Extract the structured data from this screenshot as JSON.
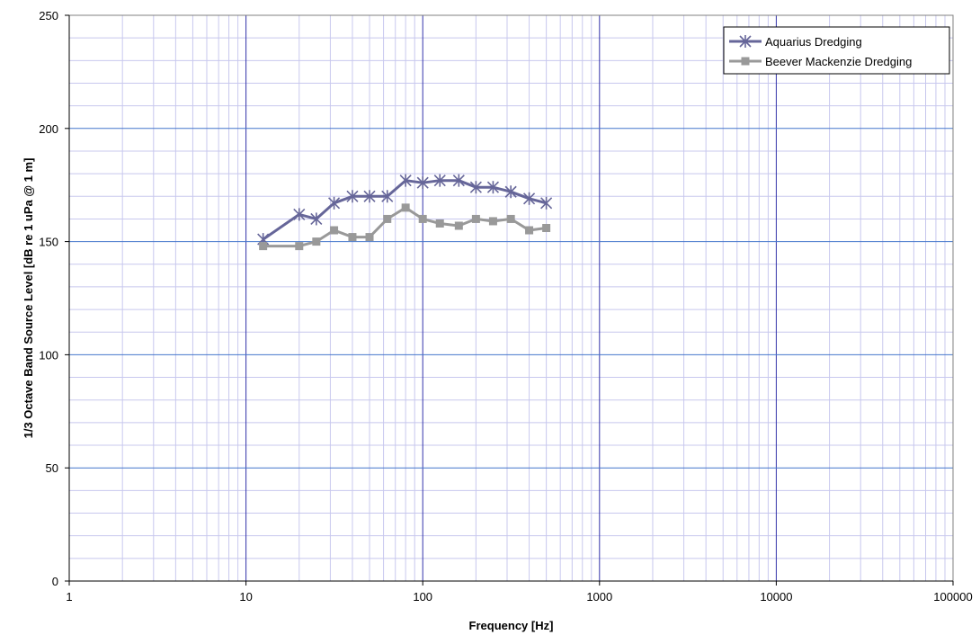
{
  "chart_data": {
    "type": "line",
    "title": "",
    "xlabel": "Frequency [Hz]",
    "ylabel": "1/3 Octave Band Source Level [dB re 1 uPa @ 1 m]",
    "xscale": "log",
    "xlim": [
      1,
      100000
    ],
    "ylim": [
      0,
      250
    ],
    "x_ticks": [
      "1",
      "10",
      "100",
      "1000",
      "10000",
      "100000"
    ],
    "y_ticks": [
      "0",
      "50",
      "100",
      "150",
      "200",
      "250"
    ],
    "grid": true,
    "legend_position": "top-right",
    "series": [
      {
        "name": "Aquarius Dredging",
        "color": "#666699",
        "marker": "asterisk",
        "x": [
          12.5,
          20,
          25,
          31.5,
          40,
          50,
          63,
          80,
          100,
          125,
          160,
          200,
          250,
          315,
          400,
          500
        ],
        "y": [
          151,
          162,
          160,
          167,
          170,
          170,
          170,
          177,
          176,
          177,
          177,
          174,
          174,
          172,
          169,
          167
        ]
      },
      {
        "name": "Beever Mackenzie Dredging",
        "color": "#999999",
        "marker": "square",
        "x": [
          12.5,
          20,
          25,
          31.5,
          40,
          50,
          63,
          80,
          100,
          125,
          160,
          200,
          250,
          315,
          400,
          500
        ],
        "y": [
          148,
          148,
          150,
          155,
          152,
          152,
          160,
          165,
          160,
          158,
          157,
          160,
          159,
          160,
          155,
          156
        ]
      }
    ]
  }
}
